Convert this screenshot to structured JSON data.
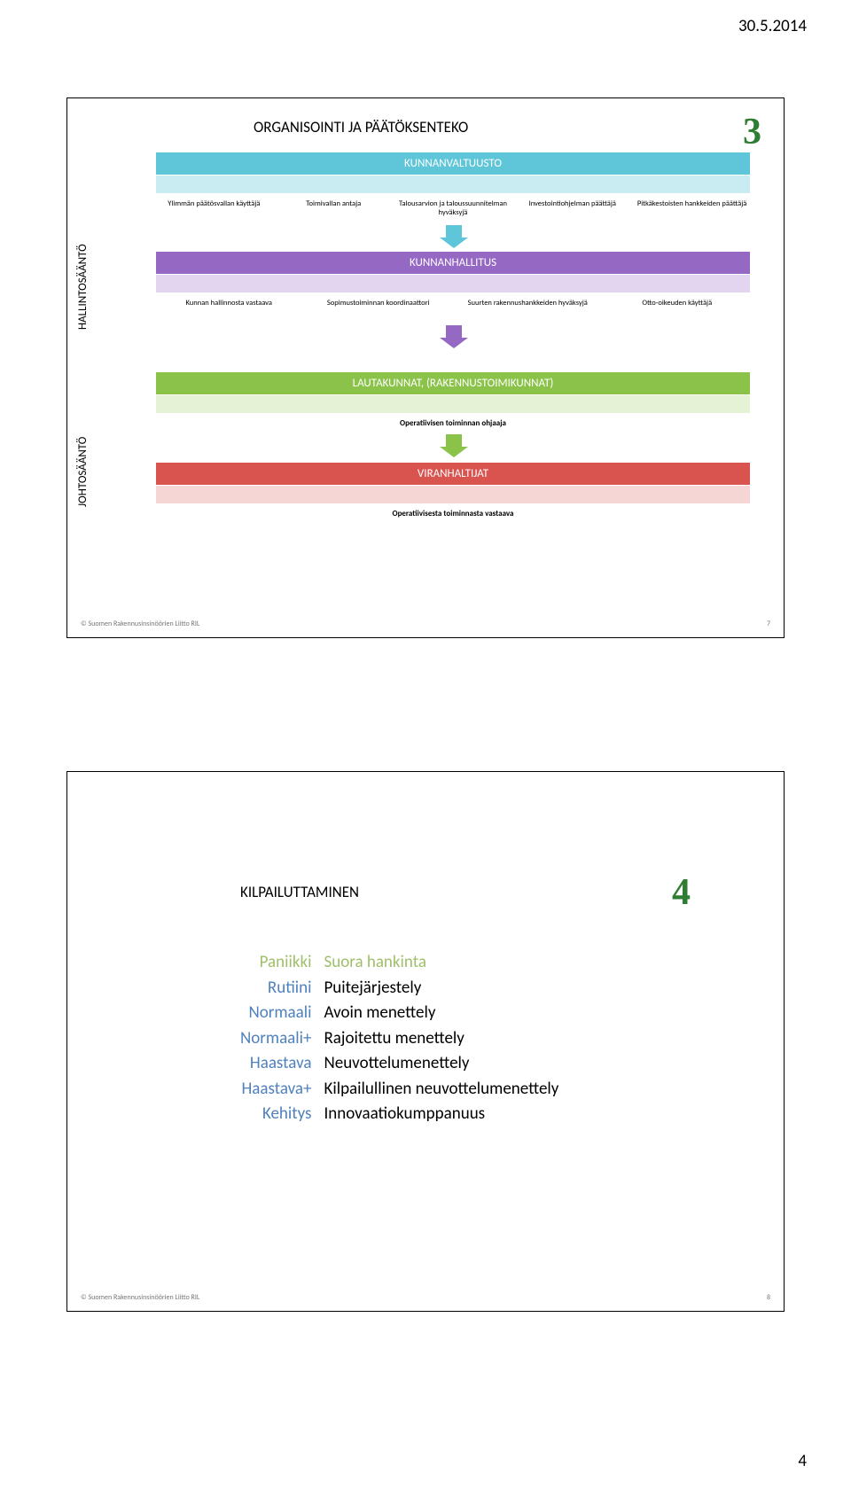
{
  "date": "30.5.2014",
  "page_number_bottom": "4",
  "slide1": {
    "title": "ORGANISOINTI JA PÄÄTÖKSENTEKO",
    "number": "3",
    "number_color": "#2e7d32",
    "footer": "© Suomen Rakennusinsinöörien Liitto RIL",
    "footer_page": "7",
    "rot_labels": {
      "hallinto": "HALLINTOSÄÄNTÖ",
      "johto": "JOHTOSÄÄNTÖ"
    },
    "bands": {
      "kunnanvaltuusto": {
        "label": "KUNNANVALTUUSTO",
        "color": "#5fc6d9",
        "sub_color": "#c9ecf2",
        "items": [
          "Ylimmän päätösvallan käyttäjä",
          "Toimivallan antaja",
          "Talousarvion ja taloussuunnitelman hyväksyjä",
          "Investointiohjelman päättäjä",
          "Pitkäkestoisten hankkeiden päättäjä"
        ]
      },
      "kunnanhallitus": {
        "label": "KUNNANHALLITUS",
        "color": "#9568c4",
        "sub_color": "#e3d4f0",
        "items": [
          "Kunnan hallinnosta vastaava",
          "Sopimustoiminnan koordinaattori",
          "Suurten rakennushankkeiden hyväksyjä",
          "Otto-oikeuden käyttäjä"
        ]
      },
      "lautakunnat": {
        "label": "LAUTAKUNNAT, (RAKENNUSTOIMIKUNNAT)",
        "color": "#8bc34a",
        "sub_color": "#e6f2d5",
        "single": "Operatiivisen toiminnan ohjaaja"
      },
      "viranhaltijat": {
        "label": "VIRANHALTIJAT",
        "color": "#d9534f",
        "sub_color": "#f5d6d5",
        "single": "Operatiivisesta toiminnasta vastaava"
      }
    },
    "arrow_colors": {
      "blue": "#5fc6d9",
      "purple": "#9568c4",
      "green": "#8bc34a"
    }
  },
  "slide2": {
    "title": "KILPAILUTTAMINEN",
    "number": "4",
    "number_color": "#2e7d32",
    "footer": "© Suomen Rakennusinsinöörien Liitto RIL",
    "footer_page": "8",
    "items": [
      {
        "left": "Paniikki",
        "right": "Suora hankinta",
        "left_color": "#9fbf6a",
        "right_color": "#9fbf6a"
      },
      {
        "left": "Rutiini",
        "right": "Puitejärjestely",
        "left_color": "#4f81bd",
        "right_color": "#000000"
      },
      {
        "left": "Normaali",
        "right": "Avoin menettely",
        "left_color": "#4f81bd",
        "right_color": "#000000"
      },
      {
        "left": "Normaali+",
        "right": "Rajoitettu menettely",
        "left_color": "#4f81bd",
        "right_color": "#000000"
      },
      {
        "left": "Haastava",
        "right": "Neuvottelumenettely",
        "left_color": "#4f81bd",
        "right_color": "#000000"
      },
      {
        "left": "Haastava+",
        "right": "Kilpailullinen neuvottelumenettely",
        "left_color": "#4f81bd",
        "right_color": "#000000"
      },
      {
        "left": "Kehitys",
        "right": "Innovaatiokumppanuus",
        "left_color": "#4f81bd",
        "right_color": "#000000"
      }
    ]
  }
}
